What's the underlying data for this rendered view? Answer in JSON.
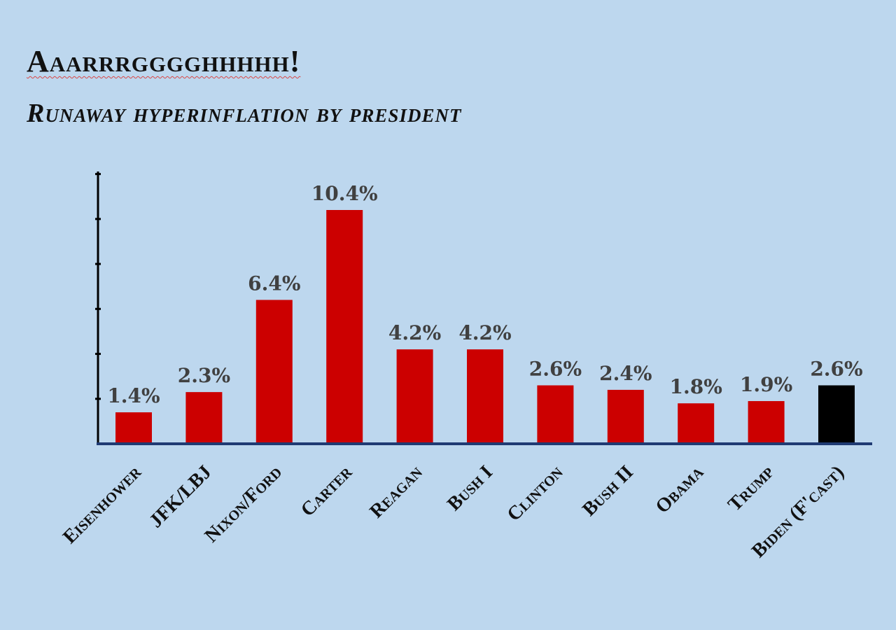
{
  "chart_data": {
    "type": "bar",
    "title": "Aaarrrgggghhhhh!",
    "subtitle": "Runaway hyperinflation by president",
    "categories": [
      "Eisenhower",
      "JFK/LBJ",
      "Nixon/Ford",
      "Carter",
      "Reagan",
      "Bush I",
      "Clinton",
      "Bush II",
      "Obama",
      "Trump",
      "Biden (F'cast)"
    ],
    "values": [
      1.4,
      2.3,
      6.4,
      10.4,
      4.2,
      4.2,
      2.6,
      2.4,
      1.8,
      1.9,
      2.6
    ],
    "value_labels": [
      "1.4%",
      "2.3%",
      "6.4%",
      "10.4%",
      "4.2%",
      "4.2%",
      "2.6%",
      "2.4%",
      "1.8%",
      "1.9%",
      "2.6%"
    ],
    "highlight_index": 10,
    "ylim": [
      0,
      12
    ],
    "grid": false,
    "legend": "none",
    "colors": {
      "bar": "#cc0000",
      "highlight": "#000000",
      "axis": "#000000",
      "baseline": "#1f3a73",
      "background": "#bdd7ee"
    }
  }
}
